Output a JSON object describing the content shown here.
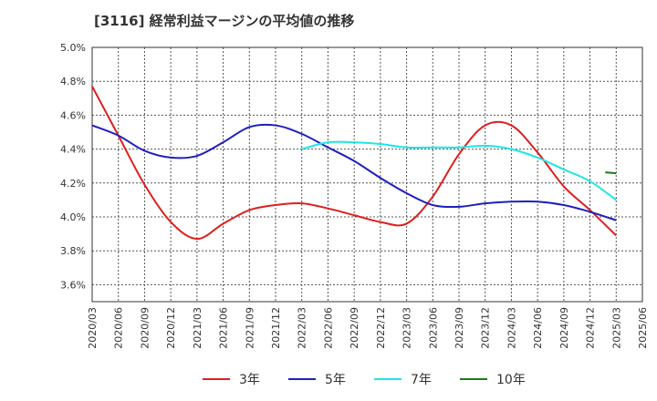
{
  "chart_data": {
    "type": "line",
    "title": "[3116]  経常利益マージンの平均値の推移",
    "xlabel": "",
    "ylabel": "",
    "ylim": [
      3.5,
      5.0
    ],
    "yticks": [
      3.6,
      3.8,
      4.0,
      4.2,
      4.4,
      4.6,
      4.8,
      5.0
    ],
    "ytick_labels": [
      "3.6%",
      "3.8%",
      "4.0%",
      "4.2%",
      "4.4%",
      "4.6%",
      "4.8%",
      "5.0%"
    ],
    "categories": [
      "2020/03",
      "2020/06",
      "2020/09",
      "2020/12",
      "2021/03",
      "2021/06",
      "2021/09",
      "2021/12",
      "2022/03",
      "2022/06",
      "2022/09",
      "2022/12",
      "2023/03",
      "2023/06",
      "2023/09",
      "2023/12",
      "2024/03",
      "2024/06",
      "2024/09",
      "2024/12",
      "2025/03",
      "2025/06"
    ],
    "grid": true,
    "legend_position": "bottom",
    "series": [
      {
        "name": "3年",
        "color": "#dd1f1f",
        "values": [
          4.77,
          4.48,
          4.19,
          3.97,
          3.87,
          3.96,
          4.04,
          4.07,
          4.08,
          4.05,
          4.01,
          3.97,
          3.96,
          4.12,
          4.37,
          4.54,
          4.54,
          4.38,
          4.18,
          4.04,
          3.89,
          null
        ]
      },
      {
        "name": "5年",
        "color": "#1f1fbe",
        "values": [
          4.54,
          4.48,
          4.39,
          4.35,
          4.36,
          4.44,
          4.53,
          4.54,
          4.49,
          4.41,
          4.33,
          4.23,
          4.14,
          4.07,
          4.06,
          4.08,
          4.09,
          4.09,
          4.07,
          4.03,
          3.98,
          null
        ]
      },
      {
        "name": "7年",
        "color": "#1fe6e6",
        "values": [
          null,
          null,
          null,
          null,
          null,
          null,
          null,
          null,
          4.4,
          4.44,
          4.44,
          4.43,
          4.41,
          4.41,
          4.41,
          4.42,
          4.4,
          4.35,
          4.28,
          4.21,
          4.1,
          null
        ]
      },
      {
        "name": "10年",
        "color": "#1a7a1a",
        "values": [
          null,
          null,
          null,
          null,
          null,
          null,
          null,
          null,
          null,
          null,
          null,
          null,
          null,
          null,
          null,
          null,
          null,
          null,
          null,
          null,
          4.26,
          null
        ]
      }
    ]
  },
  "legend": {
    "items": [
      "3年",
      "5年",
      "7年",
      "10年"
    ]
  }
}
